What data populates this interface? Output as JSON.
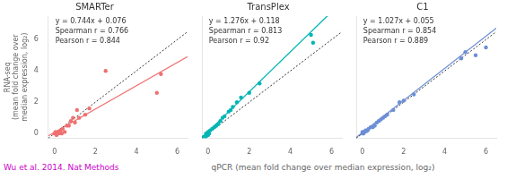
{
  "chart_data": [
    {
      "type": "scatter",
      "title": "SMARTer",
      "ylabel": "RNA-seq\n(mean fold change over\nmedian expression, log₂)",
      "color": "#F07070",
      "annotations": [
        "y = 0.744x + 0.076",
        "Spearman r = 0.766",
        "Pearson r = 0.844"
      ],
      "lines": [
        {
          "slope": 0.744,
          "intercept": 0.076,
          "color": "#F07070"
        },
        {
          "slope": 1,
          "intercept": 0,
          "color": "#333333",
          "line_style": "dotted"
        }
      ],
      "xlim": [
        -0.3,
        6.5
      ],
      "ylim": [
        -0.3,
        7.5
      ],
      "xticks": [
        0,
        2,
        4,
        6
      ],
      "yticks": [
        0,
        2,
        4,
        6
      ],
      "grid": false,
      "x": [
        0.0,
        0.05,
        0.05,
        0.1,
        0.1,
        0.15,
        0.2,
        0.2,
        0.25,
        0.3,
        0.35,
        0.4,
        0.5,
        0.6,
        0.7,
        0.8,
        0.9,
        1.0,
        1.1,
        1.2,
        1.5,
        1.7,
        2.5,
        5.0,
        5.2
      ],
      "values": [
        0.0,
        0.0,
        0.1,
        -0.1,
        0.05,
        0.0,
        0.1,
        0.0,
        0.1,
        0.2,
        0.0,
        0.3,
        0.1,
        0.5,
        0.5,
        0.8,
        1.0,
        0.7,
        1.5,
        1.0,
        1.2,
        1.6,
        4.0,
        2.6,
        3.8
      ]
    },
    {
      "type": "scatter",
      "title": "TransPlex",
      "color": "#00B5B5",
      "annotations": [
        "y = 1.276x + 0.118",
        "Spearman r = 0.813",
        "Pearson r = 0.92"
      ],
      "lines": [
        {
          "slope": 1.276,
          "intercept": 0.118,
          "color": "#00B5B5"
        },
        {
          "slope": 1,
          "intercept": 0,
          "color": "#333333",
          "line_style": "dotted"
        }
      ],
      "xlim": [
        -0.3,
        6.5
      ],
      "ylim": [
        -0.3,
        7.5
      ],
      "xticks": [
        0,
        2,
        4,
        6
      ],
      "yticks": [],
      "tick_labels": "x",
      "grid": false,
      "x": [
        -0.2,
        -0.1,
        -0.1,
        0.0,
        0.0,
        0.0,
        0.05,
        0.1,
        0.2,
        0.3,
        0.4,
        0.5,
        0.6,
        0.7,
        0.8,
        1.0,
        1.1,
        1.2,
        1.4,
        1.6,
        2.0,
        2.5,
        5.0,
        5.1
      ],
      "values": [
        -0.2,
        -0.2,
        0.0,
        -0.1,
        0.0,
        0.1,
        0.0,
        0.2,
        0.3,
        0.4,
        0.5,
        0.6,
        0.8,
        1.0,
        1.1,
        1.4,
        1.5,
        1.7,
        2.0,
        2.3,
        2.6,
        3.2,
        6.3,
        5.8
      ]
    },
    {
      "type": "scatter",
      "title": "C1",
      "color": "#6B8ED6",
      "annotations": [
        "y = 1.027x + 0.055",
        "Spearman r = 0.854",
        "Pearson r = 0.889"
      ],
      "lines": [
        {
          "slope": 1.027,
          "intercept": 0.055,
          "color": "#6B8ED6"
        },
        {
          "slope": 1,
          "intercept": 0,
          "color": "#333333",
          "line_style": "dotted"
        }
      ],
      "xlim": [
        -0.3,
        6.5
      ],
      "ylim": [
        -0.3,
        7.5
      ],
      "xticks": [
        0,
        2,
        4,
        6
      ],
      "yticks": [],
      "tick_labels": "x",
      "grid": false,
      "x": [
        0.0,
        0.0,
        0.05,
        0.1,
        0.15,
        0.2,
        0.25,
        0.3,
        0.4,
        0.5,
        0.6,
        0.7,
        0.8,
        0.9,
        1.0,
        1.1,
        1.2,
        1.5,
        1.8,
        2.0,
        2.5,
        4.8,
        5.0,
        5.5,
        6.0
      ],
      "values": [
        0.0,
        0.1,
        0.0,
        0.1,
        0.2,
        0.15,
        0.2,
        0.3,
        0.4,
        0.4,
        0.5,
        0.7,
        0.8,
        0.9,
        1.0,
        1.1,
        1.2,
        1.5,
        2.0,
        2.1,
        2.5,
        4.8,
        5.2,
        5.0,
        5.5
      ]
    }
  ],
  "xlabel": "qPCR (mean fold change over median expression, log₂)",
  "citation": "Wu et al. 2014. Nat Methods",
  "citation_color": "#CC00CC"
}
